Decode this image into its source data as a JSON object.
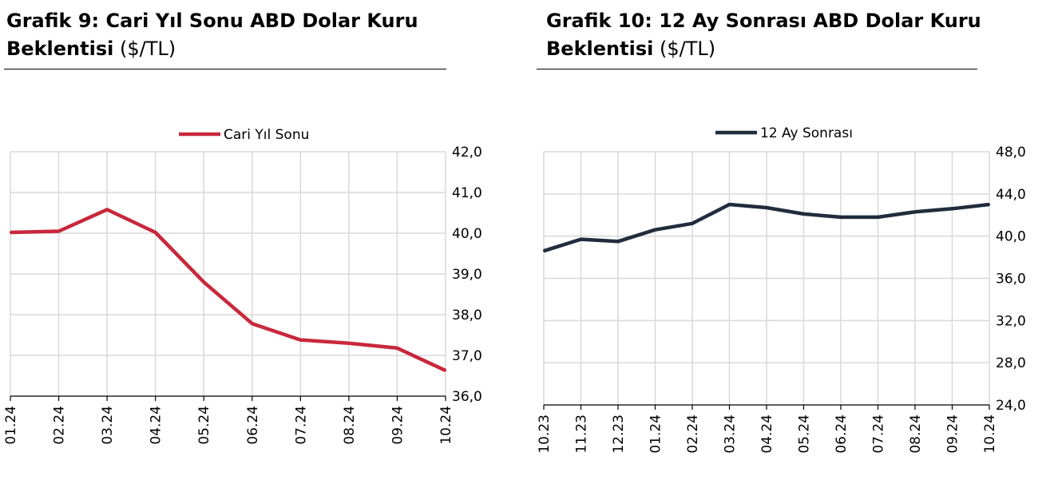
{
  "charts": [
    {
      "title_bold_line1": "Grafik 9: Cari Yıl Sonu ABD Dolar Kuru",
      "title_bold_line2": "Beklentisi",
      "title_unit": "($/TL)"
    },
    {
      "title_bold_line1": "Grafik 10: 12 Ay Sonrası ABD Dolar Kuru",
      "title_bold_line2": "Beklentisi",
      "title_unit": "($/TL)"
    }
  ],
  "chart_data": [
    {
      "type": "line",
      "title": "Grafik 9: Cari Yıl Sonu ABD Dolar Kuru Beklentisi ($/TL)",
      "categories": [
        "01.24",
        "02.24",
        "03.24",
        "04.24",
        "05.24",
        "06.24",
        "07.24",
        "08.24",
        "09.24",
        "10.24"
      ],
      "series": [
        {
          "name": "Cari Yıl Sonu",
          "color": "#c8283c",
          "values": [
            40.02,
            40.05,
            40.58,
            40.02,
            38.8,
            37.78,
            37.38,
            37.3,
            37.18,
            36.63
          ]
        }
      ],
      "ylim": [
        36.0,
        42.0
      ],
      "yticks": [
        "36,0",
        "37,0",
        "38,0",
        "39,0",
        "40,0",
        "41,0",
        "42,0"
      ],
      "ytick_values": [
        36,
        37,
        38,
        39,
        40,
        41,
        42
      ],
      "y_axis_side": "right",
      "legend": "top-center",
      "grid": true
    },
    {
      "type": "line",
      "title": "Grafik 10: 12 Ay Sonrası ABD Dolar Kuru Beklentisi ($/TL)",
      "categories": [
        "10.23",
        "11.23",
        "12.23",
        "01.24",
        "02.24",
        "03.24",
        "04.24",
        "05.24",
        "06.24",
        "07.24",
        "08.24",
        "09.24",
        "10.24"
      ],
      "series": [
        {
          "name": "12 Ay Sonrası",
          "color": "#1f2d3d",
          "values": [
            38.6,
            39.7,
            39.5,
            40.6,
            41.2,
            43.0,
            42.7,
            42.1,
            41.8,
            41.8,
            42.3,
            42.6,
            43.0
          ]
        }
      ],
      "ylim": [
        24.0,
        48.0
      ],
      "yticks": [
        "24,0",
        "28,0",
        "32,0",
        "36,0",
        "40,0",
        "44,0",
        "48,0"
      ],
      "ytick_values": [
        24,
        28,
        32,
        36,
        40,
        44,
        48
      ],
      "y_axis_side": "right",
      "legend": "top-center",
      "grid": true
    }
  ]
}
